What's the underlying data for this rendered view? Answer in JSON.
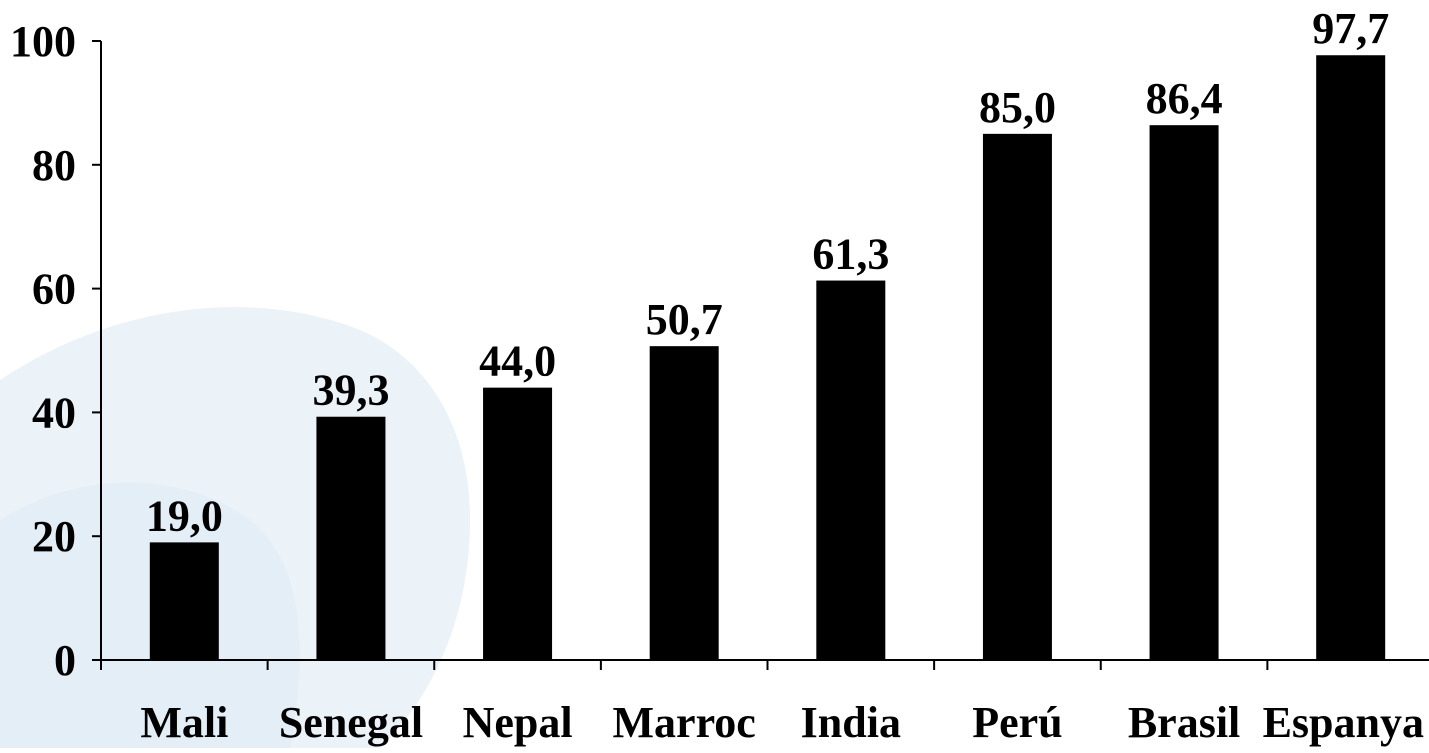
{
  "chart_data": {
    "type": "bar",
    "categories": [
      "Mali",
      "Senegal",
      "Nepal",
      "Marroc",
      "India",
      "Perú",
      "Brasil",
      "Espanya"
    ],
    "values": [
      19.0,
      39.3,
      44.0,
      50.7,
      61.3,
      85.0,
      86.4,
      97.7
    ],
    "value_labels": [
      "19,0",
      "39,3",
      "44,0",
      "50,7",
      "61,3",
      "85,0",
      "86,4",
      "97,7"
    ],
    "y_ticks": [
      0,
      20,
      40,
      60,
      80,
      100
    ],
    "y_tick_labels": [
      "0",
      "20",
      "40",
      "60",
      "80",
      "100"
    ],
    "ylim": [
      0,
      100
    ],
    "title": "",
    "xlabel": "",
    "ylabel": "",
    "grid": false,
    "legend": "none",
    "bar_color": "#000000",
    "axis_color": "#000000",
    "background_decoration_color": "#dbe8f3"
  }
}
